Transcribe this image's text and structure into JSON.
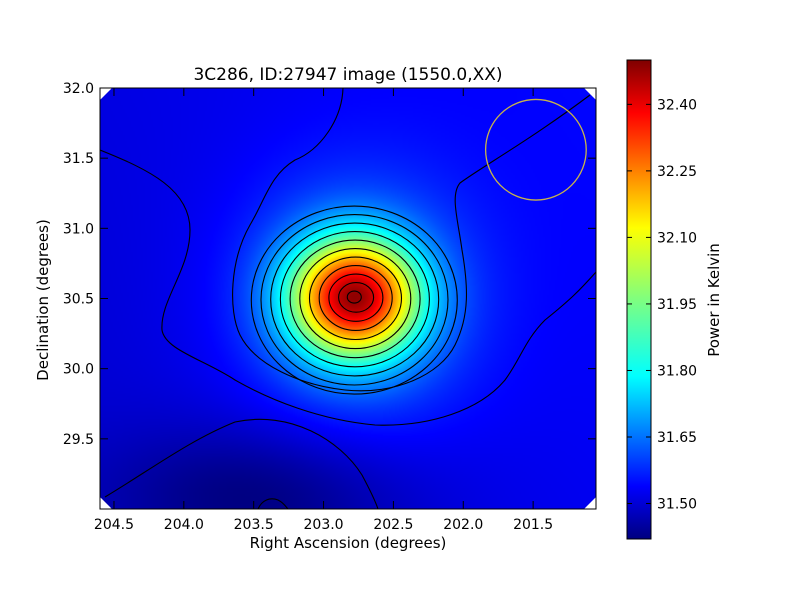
{
  "chart_data": {
    "type": "heatmap",
    "title": "3C286, ID:27947 image (1550.0,XX)",
    "xlabel": "Right Ascension (degrees)",
    "ylabel": "Declination (degrees)",
    "xlim": [
      204.6,
      201.05
    ],
    "ylim": [
      29.0,
      32.0
    ],
    "x_ticks": [
      204.5,
      204.0,
      203.5,
      203.0,
      202.5,
      202.0,
      201.5
    ],
    "x_tick_labels": [
      "204.5",
      "204.0",
      "203.5",
      "203.0",
      "202.5",
      "202.0",
      "201.5"
    ],
    "y_ticks": [
      29.5,
      30.0,
      30.5,
      31.0,
      31.5,
      32.0
    ],
    "y_tick_labels": [
      "29.5",
      "30.0",
      "30.5",
      "31.0",
      "31.5",
      "32.0"
    ],
    "colorbar": {
      "label": "Power in Kelvin",
      "range": [
        31.42,
        32.5
      ],
      "ticks": [
        31.5,
        31.65,
        31.8,
        31.95,
        32.1,
        32.25,
        32.4
      ],
      "tick_labels": [
        "31.50",
        "31.65",
        "31.80",
        "31.95",
        "32.10",
        "32.25",
        "32.40"
      ],
      "colormap": "jet"
    },
    "source": {
      "ra": 202.78,
      "dec": 30.51,
      "peak_kelvin": 32.48
    },
    "background_kelvin": 31.53,
    "dip": {
      "ra": 203.45,
      "dec": 29.1,
      "min_kelvin": 31.43
    },
    "beam_circle": {
      "ra": 201.48,
      "dec": 31.56,
      "radius_deg": 0.36,
      "color": "#c8b44a"
    },
    "grid": false
  }
}
